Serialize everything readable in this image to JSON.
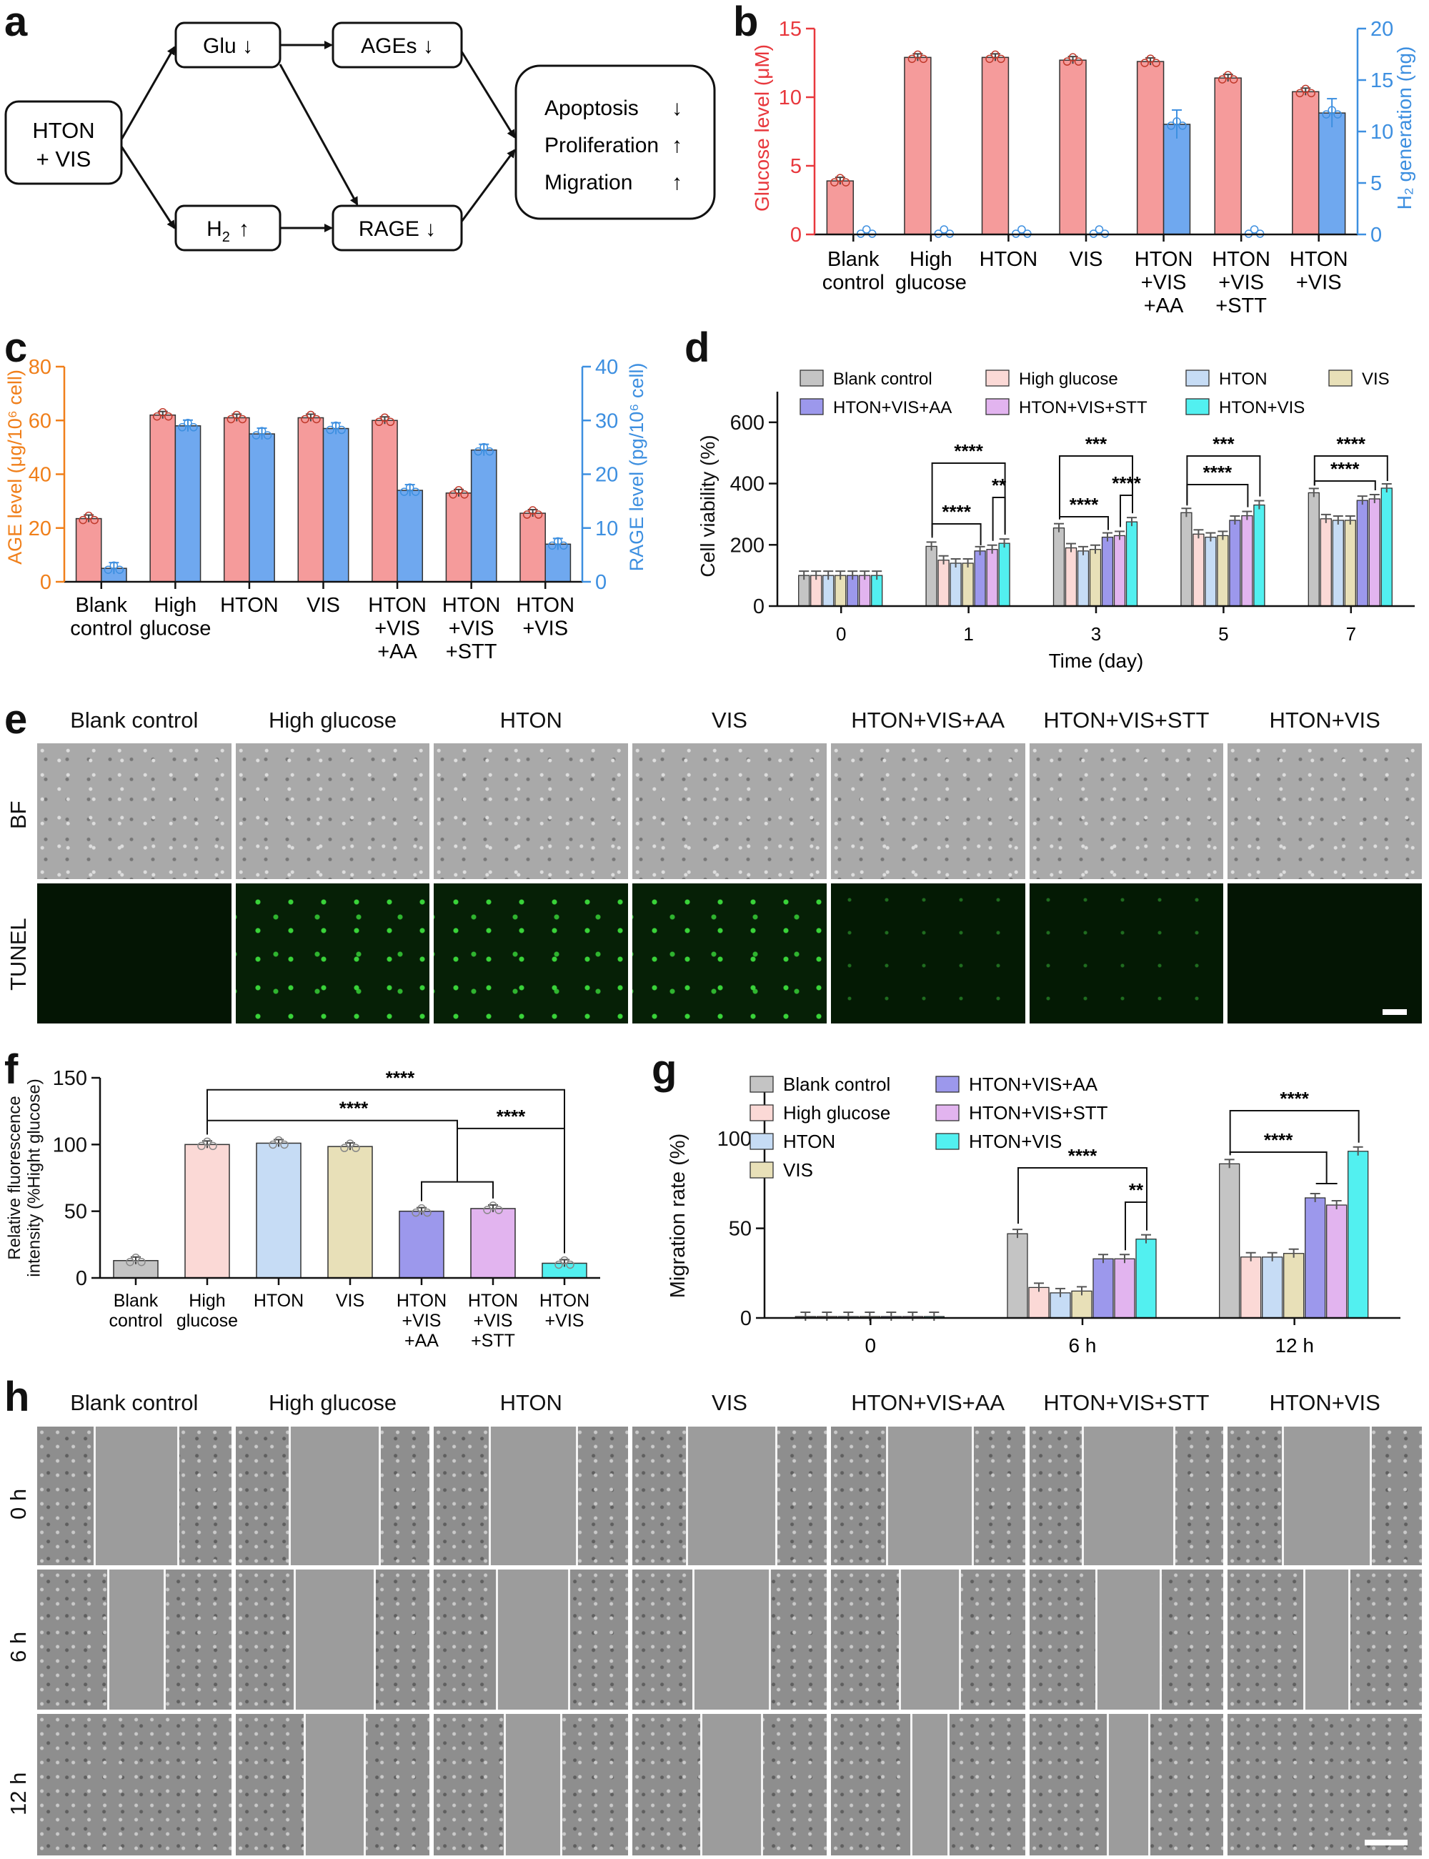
{
  "panels": {
    "a": "a",
    "b": "b",
    "c": "c",
    "d": "d",
    "e": "e",
    "f": "f",
    "g": "g",
    "h": "h"
  },
  "diagram": {
    "input": [
      "HTON",
      "+ VIS"
    ],
    "glu": "Glu ↓",
    "ages": "AGEs ↓",
    "h2_main": "H",
    "h2_sub": "2",
    "h2_arrow": "↑",
    "rage": "RAGE ↓",
    "outcomes": [
      {
        "label": "Apoptosis",
        "arrow": "↓"
      },
      {
        "label": "Proliferation",
        "arrow": "↑"
      },
      {
        "label": "Migration",
        "arrow": "↑"
      }
    ]
  },
  "colors": {
    "red": "#f59b9b",
    "red_axis": "#e8383d",
    "blue": "#6fa8ef",
    "blue_axis": "#3d8fe0",
    "orange_axis": "#f07f1a",
    "gray": "#c4c4c4",
    "pink": "#fbd9d6",
    "lightblue": "#c6dcf5",
    "tan": "#e8e0b8",
    "purple": "#9c98ec",
    "violet": "#e2b4ef",
    "cyan": "#52f0f0"
  },
  "chart_data": [
    {
      "id": "b",
      "type": "bar",
      "categories": [
        [
          "Blank",
          "control"
        ],
        [
          "High",
          "glucose"
        ],
        [
          "HTON"
        ],
        [
          "VIS"
        ],
        [
          "HTON",
          "+VIS",
          "+AA"
        ],
        [
          "HTON",
          "+VIS",
          "+STT"
        ],
        [
          "HTON",
          "+VIS"
        ]
      ],
      "ylabel": "Glucose level (μM)",
      "ylabel2": "H₂ generation (ng)",
      "ylim": [
        0,
        15
      ],
      "yticks": [
        0,
        5,
        10,
        15
      ],
      "ylim2": [
        0,
        20
      ],
      "yticks2": [
        0,
        5,
        10,
        15,
        20
      ],
      "series": [
        {
          "name": "Glucose level",
          "axis": "left",
          "values": [
            3.9,
            12.9,
            12.9,
            12.7,
            12.6,
            11.4,
            10.4
          ]
        },
        {
          "name": "H2 generation",
          "axis": "right",
          "values": [
            0,
            0,
            0,
            0,
            10.7,
            0,
            11.8
          ]
        }
      ]
    },
    {
      "id": "c",
      "type": "bar",
      "categories": [
        [
          "Blank",
          "control"
        ],
        [
          "High",
          "glucose"
        ],
        [
          "HTON"
        ],
        [
          "VIS"
        ],
        [
          "HTON",
          "+VIS",
          "+AA"
        ],
        [
          "HTON",
          "+VIS",
          "+STT"
        ],
        [
          "HTON",
          "+VIS"
        ]
      ],
      "ylabel": "AGE level (μg/10⁶ cell)",
      "ylabel2": "RAGE level (pg/10⁶ cell)",
      "ylim": [
        0,
        80
      ],
      "yticks": [
        0,
        20,
        40,
        60,
        80
      ],
      "ylim2": [
        0,
        40
      ],
      "yticks2": [
        0,
        10,
        20,
        30,
        40
      ],
      "series": [
        {
          "name": "AGE level",
          "axis": "left",
          "values": [
            23.5,
            62,
            61,
            61,
            60,
            33,
            25.5
          ]
        },
        {
          "name": "RAGE level",
          "axis": "right",
          "values": [
            2.5,
            29,
            27.5,
            28.5,
            17,
            24.5,
            7
          ]
        }
      ]
    },
    {
      "id": "d",
      "type": "bar",
      "categories": [
        "0",
        "1",
        "3",
        "5",
        "7"
      ],
      "xlabel": "Time (day)",
      "ylabel": "Cell viability (%)",
      "ylim": [
        0,
        700
      ],
      "yticks": [
        0,
        200,
        400,
        600
      ],
      "series": [
        {
          "name": "Blank control",
          "values": [
            100,
            195,
            255,
            305,
            370
          ]
        },
        {
          "name": "High glucose",
          "values": [
            100,
            150,
            190,
            235,
            285
          ]
        },
        {
          "name": "HTON",
          "values": [
            100,
            140,
            180,
            225,
            280
          ]
        },
        {
          "name": "VIS",
          "values": [
            100,
            140,
            185,
            230,
            280
          ]
        },
        {
          "name": "HTON+VIS+AA",
          "values": [
            100,
            180,
            225,
            280,
            345
          ]
        },
        {
          "name": "HTON+VIS+STT",
          "values": [
            100,
            185,
            230,
            295,
            350
          ]
        },
        {
          "name": "HTON+VIS",
          "values": [
            100,
            205,
            275,
            330,
            385
          ]
        }
      ],
      "sig": [
        "****",
        "**",
        "****",
        "***",
        "****",
        "****",
        "***",
        "****",
        "****"
      ]
    },
    {
      "id": "f",
      "type": "bar",
      "categories": [
        [
          "Blank",
          "control"
        ],
        [
          "High",
          "glucose"
        ],
        [
          "HTON"
        ],
        [
          "VIS"
        ],
        [
          "HTON",
          "+VIS",
          "+AA"
        ],
        [
          "HTON",
          "+VIS",
          "+STT"
        ],
        [
          "HTON",
          "+VIS"
        ]
      ],
      "ylabel": [
        "Relative fluorescence",
        "intensity (%Hight glucose)"
      ],
      "ylim": [
        0,
        150
      ],
      "yticks": [
        0,
        50,
        100,
        150
      ],
      "values": [
        13,
        100,
        101,
        98.5,
        50,
        52,
        11
      ],
      "sig": [
        "****",
        "****",
        "****"
      ]
    },
    {
      "id": "g",
      "type": "bar",
      "categories": [
        "0",
        "6 h",
        "12 h"
      ],
      "ylabel": "Migration rate (%)",
      "ylim": [
        0,
        130
      ],
      "yticks": [
        0,
        50,
        100
      ],
      "series": [
        {
          "name": "Blank control",
          "values": [
            0,
            47,
            86
          ]
        },
        {
          "name": "High glucose",
          "values": [
            0,
            17,
            34
          ]
        },
        {
          "name": "HTON",
          "values": [
            0,
            14,
            34
          ]
        },
        {
          "name": "VIS",
          "values": [
            0,
            15,
            36
          ]
        },
        {
          "name": "HTON+VIS+AA",
          "values": [
            0,
            33,
            67
          ]
        },
        {
          "name": "HTON+VIS+STT",
          "values": [
            0,
            33,
            63
          ]
        },
        {
          "name": "HTON+VIS",
          "values": [
            0,
            44,
            93
          ]
        }
      ],
      "sig": [
        "****",
        "**",
        "****",
        "****"
      ]
    }
  ],
  "image_panels": {
    "groups": [
      "Blank control",
      "High glucose",
      "HTON",
      "VIS",
      "HTON+VIS+AA",
      "HTON+VIS+STT",
      "HTON+VIS"
    ],
    "e_rows": [
      "BF",
      "TUNEL"
    ],
    "h_rows": [
      "0 h",
      "6 h",
      "12 h"
    ]
  }
}
